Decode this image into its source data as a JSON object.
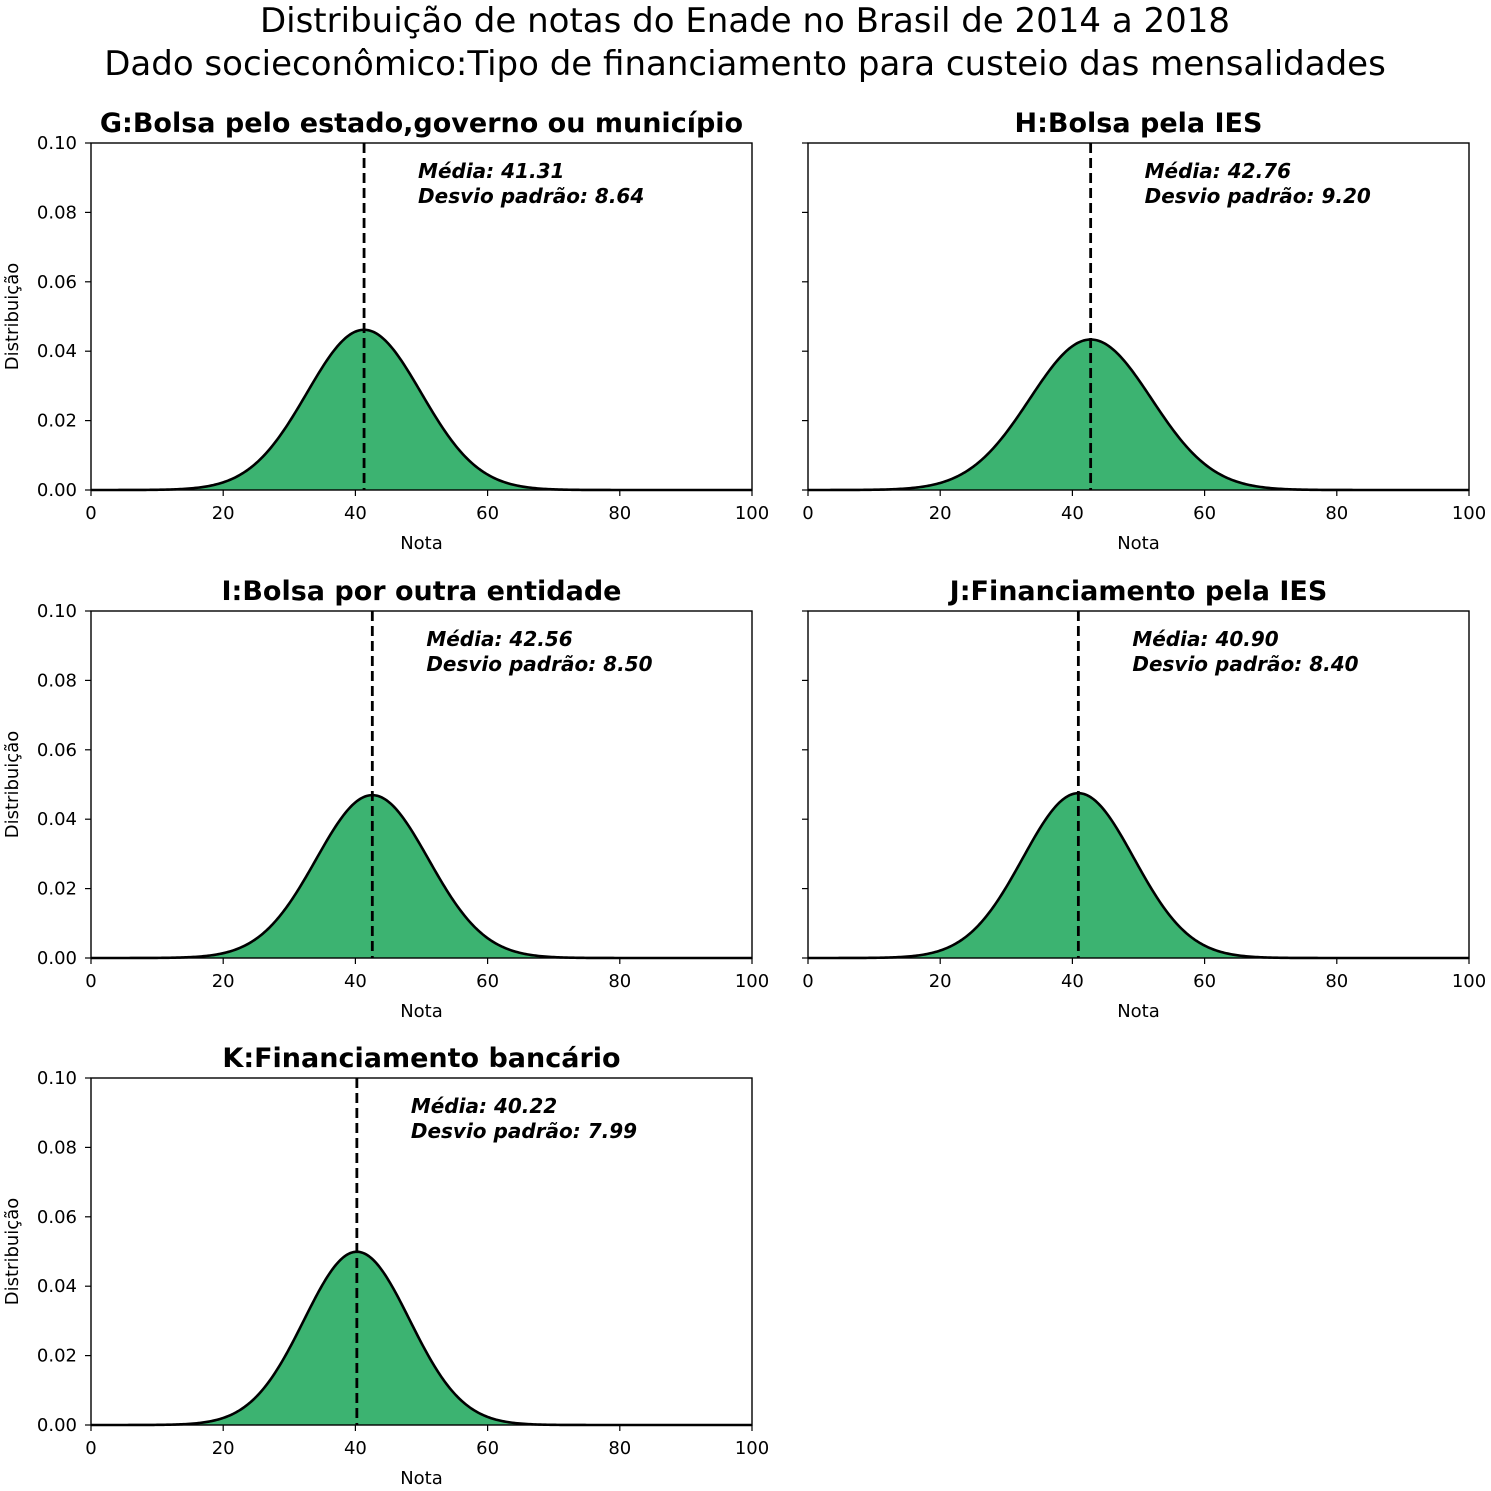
{
  "figure": {
    "title_line1": "Distribuição de notas do Enade no Brasil de 2014 a 2018",
    "title_line2": "Dado socieconômico:Tipo de financiamento para custeio das mensalidades"
  },
  "colors": {
    "fill": "#3cb371",
    "line": "#000000"
  },
  "chart_data": [
    {
      "type": "area",
      "title": "G:Bolsa pelo estado,governo ou município",
      "mean": 41.31,
      "std": 8.64,
      "annotation_mean": "Média: 41.31",
      "annotation_std": "Desvio padrão: 8.64",
      "xlabel": "Nota",
      "ylabel": "Distribuição",
      "xlim": [
        0,
        100
      ],
      "ylim": [
        0,
        0.1
      ],
      "xticks": [
        "0",
        "20",
        "40",
        "60",
        "80",
        "100"
      ],
      "yticks": [
        "0.00",
        "0.02",
        "0.04",
        "0.06",
        "0.08",
        "0.10"
      ]
    },
    {
      "type": "area",
      "title": "H:Bolsa pela IES",
      "mean": 42.76,
      "std": 9.2,
      "annotation_mean": "Média: 42.76",
      "annotation_std": "Desvio padrão: 9.20",
      "xlabel": "Nota",
      "ylabel": "",
      "xlim": [
        0,
        100
      ],
      "ylim": [
        0,
        0.1
      ],
      "xticks": [
        "0",
        "20",
        "40",
        "60",
        "80",
        "100"
      ],
      "yticks": []
    },
    {
      "type": "area",
      "title": "I:Bolsa por outra entidade",
      "mean": 42.56,
      "std": 8.5,
      "annotation_mean": "Média: 42.56",
      "annotation_std": "Desvio padrão: 8.50",
      "xlabel": "Nota",
      "ylabel": "Distribuição",
      "xlim": [
        0,
        100
      ],
      "ylim": [
        0,
        0.1
      ],
      "xticks": [
        "0",
        "20",
        "40",
        "60",
        "80",
        "100"
      ],
      "yticks": [
        "0.00",
        "0.02",
        "0.04",
        "0.06",
        "0.08",
        "0.10"
      ]
    },
    {
      "type": "area",
      "title": "J:Financiamento pela IES",
      "mean": 40.9,
      "std": 8.4,
      "annotation_mean": "Média: 40.90",
      "annotation_std": "Desvio padrão: 8.40",
      "xlabel": "Nota",
      "ylabel": "",
      "xlim": [
        0,
        100
      ],
      "ylim": [
        0,
        0.1
      ],
      "xticks": [
        "0",
        "20",
        "40",
        "60",
        "80",
        "100"
      ],
      "yticks": []
    },
    {
      "type": "area",
      "title": "K:Financiamento bancário",
      "mean": 40.22,
      "std": 7.99,
      "annotation_mean": "Média: 40.22",
      "annotation_std": "Desvio padrão: 7.99",
      "xlabel": "Nota",
      "ylabel": "Distribuição",
      "xlim": [
        0,
        100
      ],
      "ylim": [
        0,
        0.1
      ],
      "xticks": [
        "0",
        "20",
        "40",
        "60",
        "80",
        "100"
      ],
      "yticks": [
        "0.00",
        "0.02",
        "0.04",
        "0.06",
        "0.08",
        "0.10"
      ]
    }
  ]
}
